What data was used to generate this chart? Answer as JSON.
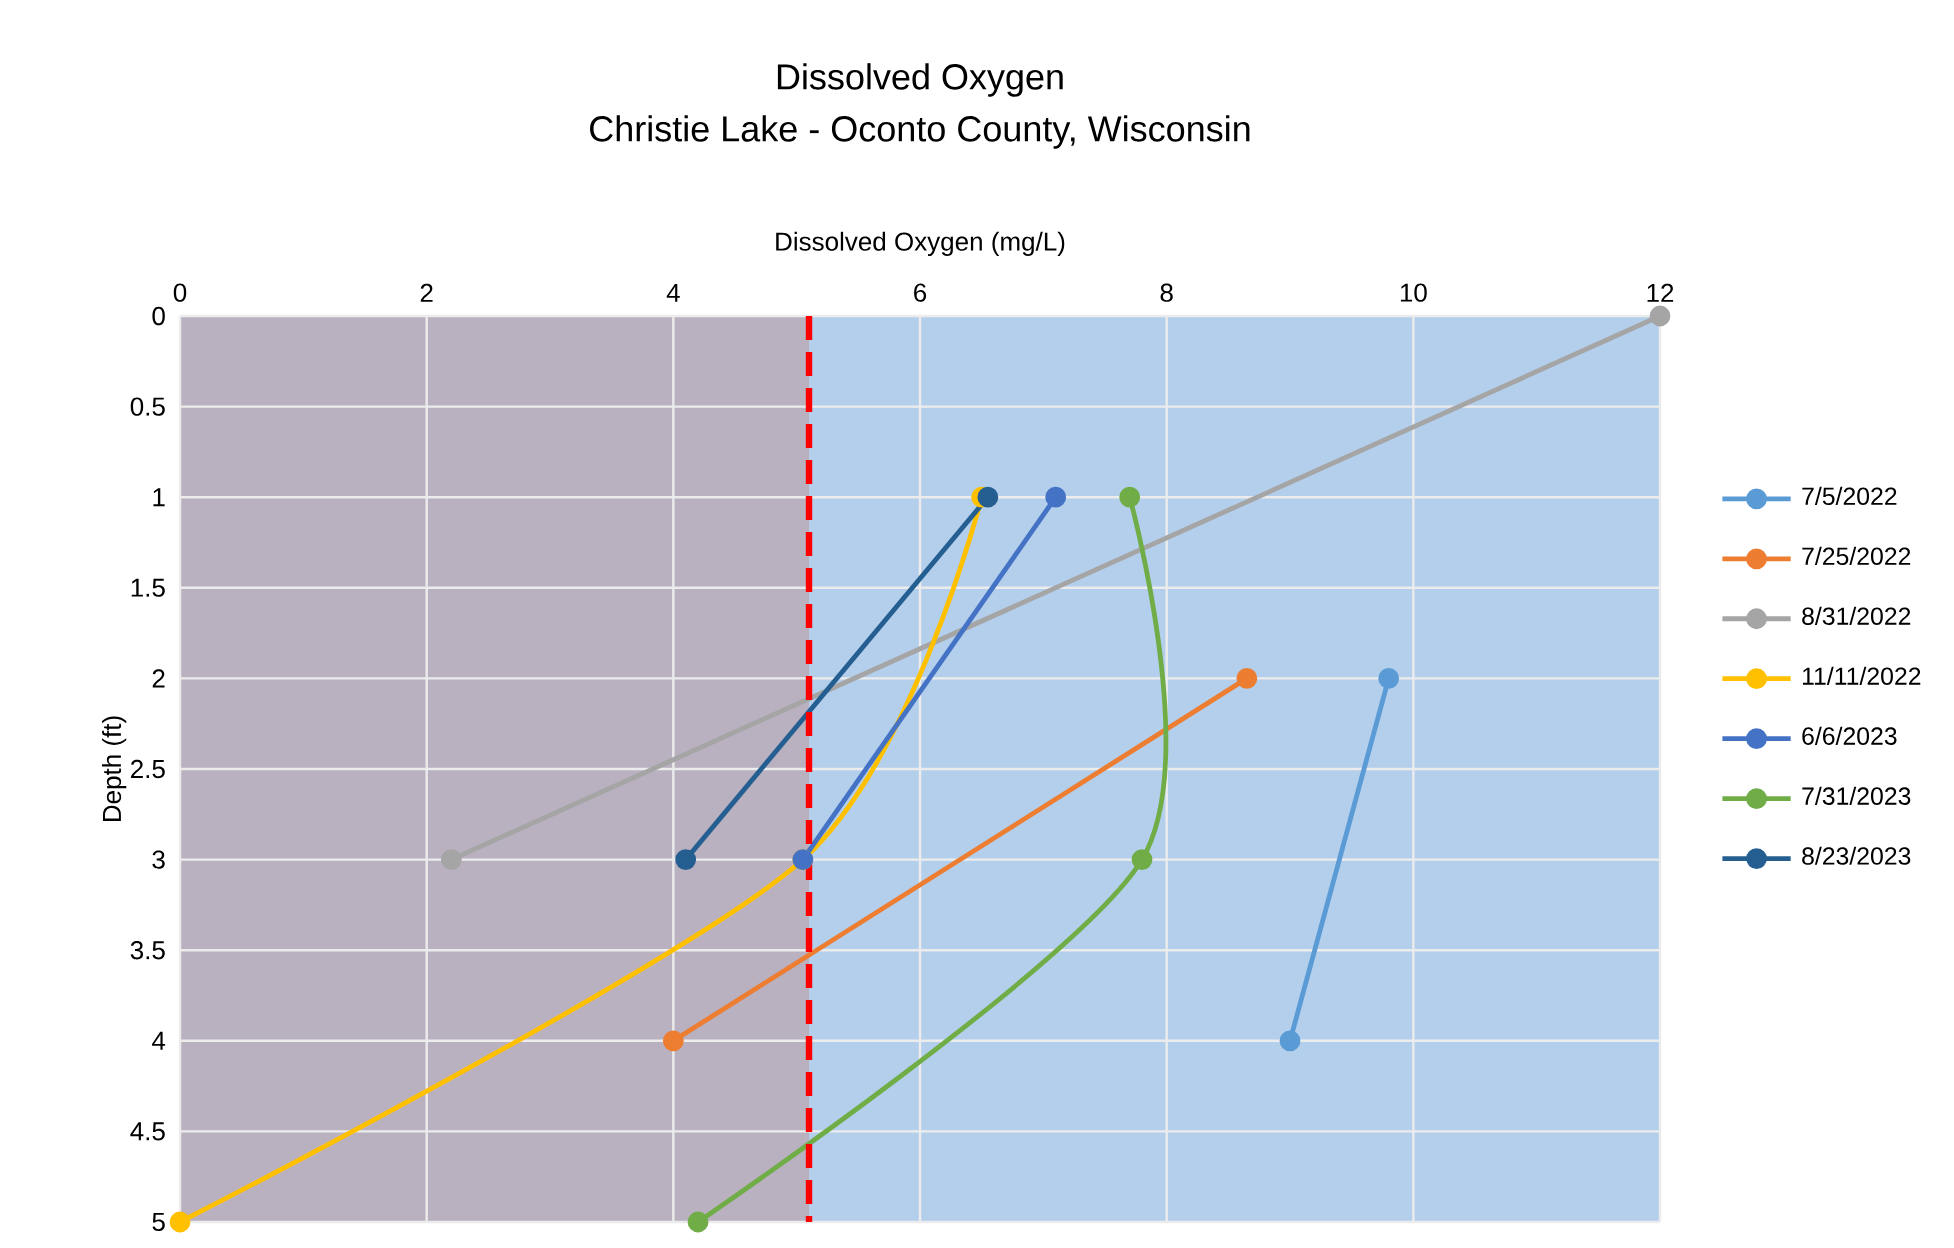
{
  "chart_data": {
    "type": "line",
    "title": "Dissolved Oxygen",
    "subtitle": "Christie Lake - Oconto County, Wisconsin",
    "xlabel": "Dissolved Oxygen (mg/L)",
    "ylabel": "Depth (ft)",
    "xlim": [
      0,
      12
    ],
    "xticks": [
      0,
      2,
      4,
      6,
      8,
      10,
      12
    ],
    "ylim": [
      5,
      0
    ],
    "yticks": [
      0,
      0.5,
      1,
      1.5,
      2,
      2.5,
      3,
      3.5,
      4,
      4.5,
      5
    ],
    "grid": true,
    "legend": "right",
    "marker": "circle",
    "series": [
      {
        "name": "7/5/2022",
        "color": "#5b9bd5",
        "x": [
          9.8,
          9.0
        ],
        "values": [
          2,
          4
        ]
      },
      {
        "name": "7/25/2022",
        "color": "#ed7d31",
        "x": [
          8.65,
          4.0
        ],
        "values": [
          2,
          4
        ]
      },
      {
        "name": "8/31/2022",
        "color": "#a5a5a5",
        "x": [
          12,
          2.2
        ],
        "values": [
          0,
          3
        ]
      },
      {
        "name": "11/11/2022",
        "color": "#ffc000",
        "x": [
          6.5,
          5.05,
          0
        ],
        "values": [
          1,
          3,
          5
        ]
      },
      {
        "name": "6/6/2023",
        "color": "#4472c4",
        "x": [
          7.1,
          5.05
        ],
        "values": [
          1,
          3
        ]
      },
      {
        "name": "7/31/2023",
        "color": "#70ad47",
        "x": [
          7.7,
          7.8,
          4.2
        ],
        "values": [
          1,
          3,
          5
        ]
      },
      {
        "name": "8/23/2023",
        "color": "#255e91",
        "x": [
          6.55,
          4.1
        ],
        "values": [
          1,
          3
        ]
      }
    ],
    "ref_lines": [
      {
        "axis": "x",
        "value": 5.1,
        "color": "#ff0000",
        "line_style": "dashed"
      }
    ],
    "bands": [
      {
        "axis": "x",
        "from": 0,
        "to": 5.1,
        "color": "#b9b0c0"
      },
      {
        "axis": "x",
        "from": 5.1,
        "to": 12,
        "color": "#b3cfec"
      }
    ]
  }
}
